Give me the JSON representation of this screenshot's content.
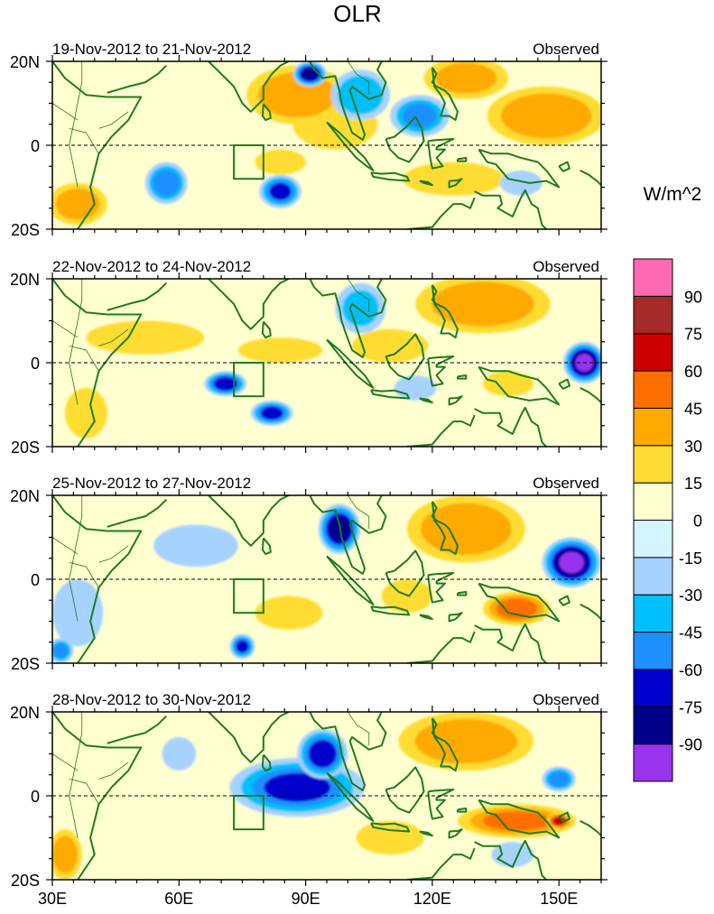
{
  "chart_data": {
    "type": "heatmap",
    "title": "OLR",
    "units": "W/m^2",
    "region_box": {
      "lon": [
        73,
        80
      ],
      "lat": [
        -8,
        0
      ]
    },
    "xaxis": {
      "range": [
        30,
        160
      ],
      "ticks": [
        30,
        60,
        90,
        120,
        150
      ],
      "tick_labels": [
        "30E",
        "60E",
        "90E",
        "120E",
        "150E"
      ]
    },
    "yaxis": {
      "range": [
        -20,
        20
      ],
      "ticks": [
        20,
        0,
        -20
      ],
      "tick_labels": [
        "20N",
        "0",
        "20S"
      ]
    },
    "colorbar": {
      "levels": [
        -90,
        -75,
        -60,
        -45,
        -30,
        -15,
        0,
        15,
        30,
        45,
        60,
        75,
        90
      ],
      "labels": [
        "-90",
        "-75",
        "-60",
        "-45",
        "-30",
        "-15",
        "0",
        "15",
        "30",
        "45",
        "60",
        "75",
        "90"
      ],
      "colors": [
        "#9933ee",
        "#00008b",
        "#0000cd",
        "#1e90ff",
        "#00bfff",
        "#a6d2ff",
        "#d4f5ff",
        "#ffffd0",
        "#ffdc33",
        "#ffaa00",
        "#ff6f00",
        "#cc0000",
        "#a52a2a",
        "#ff69b4"
      ]
    },
    "panels": [
      {
        "date_range": "19-Nov-2012 to 21-Nov-2012",
        "label": "Observed",
        "anomalies": [
          {
            "lon": 88,
            "lat": 12,
            "rlon": 12,
            "rlat": 7,
            "value": 40
          },
          {
            "lon": 97,
            "lat": 5,
            "rlon": 10,
            "rlat": 6,
            "value": 25
          },
          {
            "lon": 84,
            "lat": -4,
            "rlon": 6,
            "rlat": 3,
            "value": 25
          },
          {
            "lon": 147,
            "lat": 7,
            "rlon": 14,
            "rlat": 7,
            "value": 40
          },
          {
            "lon": 128,
            "lat": 16,
            "rlon": 10,
            "rlat": 5,
            "value": 32
          },
          {
            "lon": 125,
            "lat": -8,
            "rlon": 12,
            "rlat": 4,
            "value": 24
          },
          {
            "lon": 36,
            "lat": -14,
            "rlon": 7,
            "rlat": 5,
            "value": 35
          },
          {
            "lon": 57,
            "lat": -9,
            "rlon": 5,
            "rlat": 5,
            "value": -55
          },
          {
            "lon": 84,
            "lat": -11,
            "rlon": 5,
            "rlat": 4,
            "value": -62
          },
          {
            "lon": 91,
            "lat": 17,
            "rlon": 4,
            "rlat": 3,
            "value": -80
          },
          {
            "lon": 103,
            "lat": 12,
            "rlon": 7,
            "rlat": 6,
            "value": -40
          },
          {
            "lon": 117,
            "lat": 7,
            "rlon": 7,
            "rlat": 5,
            "value": -45
          },
          {
            "lon": 141,
            "lat": -9,
            "rlon": 5,
            "rlat": 3,
            "value": -25
          }
        ]
      },
      {
        "date_range": "22-Nov-2012 to 24-Nov-2012",
        "label": "Observed",
        "anomalies": [
          {
            "lon": 132,
            "lat": 14,
            "rlon": 16,
            "rlat": 7,
            "value": 38
          },
          {
            "lon": 84,
            "lat": 3,
            "rlon": 10,
            "rlat": 3,
            "value": 25
          },
          {
            "lon": 52,
            "lat": 6,
            "rlon": 14,
            "rlat": 4,
            "value": 18
          },
          {
            "lon": 110,
            "lat": 4,
            "rlon": 9,
            "rlat": 4,
            "value": 18
          },
          {
            "lon": 38,
            "lat": -12,
            "rlon": 5,
            "rlat": 6,
            "value": 20
          },
          {
            "lon": 71,
            "lat": -5,
            "rlon": 5,
            "rlat": 3,
            "value": -70
          },
          {
            "lon": 82,
            "lat": -12,
            "rlon": 5,
            "rlat": 3,
            "value": -65
          },
          {
            "lon": 156,
            "lat": 0,
            "rlon": 5,
            "rlat": 5,
            "value": -95
          },
          {
            "lon": 103,
            "lat": 13,
            "rlon": 6,
            "rlat": 6,
            "value": -30
          },
          {
            "lon": 116,
            "lat": -6,
            "rlon": 5,
            "rlat": 3,
            "value": -25
          },
          {
            "lon": 138,
            "lat": -5,
            "rlon": 6,
            "rlat": 3,
            "value": 20
          }
        ]
      },
      {
        "date_range": "25-Nov-2012 to 27-Nov-2012",
        "label": "Observed",
        "anomalies": [
          {
            "lon": 128,
            "lat": 12,
            "rlon": 14,
            "rlat": 8,
            "value": 40
          },
          {
            "lon": 140,
            "lat": -7,
            "rlon": 8,
            "rlat": 4,
            "value": 50
          },
          {
            "lon": 86,
            "lat": -8,
            "rlon": 8,
            "rlat": 4,
            "value": 28
          },
          {
            "lon": 114,
            "lat": -4,
            "rlon": 6,
            "rlat": 4,
            "value": 20
          },
          {
            "lon": 98,
            "lat": 12,
            "rlon": 5,
            "rlat": 6,
            "value": -85
          },
          {
            "lon": 153,
            "lat": 4,
            "rlon": 7,
            "rlat": 6,
            "value": -95
          },
          {
            "lon": 75,
            "lat": -16,
            "rlon": 3,
            "rlat": 3,
            "value": -60
          },
          {
            "lon": 64,
            "lat": 8,
            "rlon": 10,
            "rlat": 5,
            "value": -25
          },
          {
            "lon": 36,
            "lat": -8,
            "rlon": 6,
            "rlat": 8,
            "value": -25
          },
          {
            "lon": 32,
            "lat": -17,
            "rlon": 3,
            "rlat": 3,
            "value": -45
          }
        ]
      },
      {
        "date_range": "28-Nov-2012 to 30-Nov-2012",
        "label": "Observed",
        "anomalies": [
          {
            "lon": 88,
            "lat": 2,
            "rlon": 16,
            "rlat": 7,
            "value": -60
          },
          {
            "lon": 94,
            "lat": 10,
            "rlon": 6,
            "rlat": 6,
            "value": -70
          },
          {
            "lon": 128,
            "lat": 13,
            "rlon": 16,
            "rlat": 7,
            "value": 38
          },
          {
            "lon": 140,
            "lat": -6,
            "rlon": 14,
            "rlat": 4,
            "value": 45
          },
          {
            "lon": 150,
            "lat": -6,
            "rlon": 3,
            "rlat": 2,
            "value": 62
          },
          {
            "lon": 150,
            "lat": 4,
            "rlon": 4,
            "rlat": 3,
            "value": -50
          },
          {
            "lon": 33,
            "lat": -14,
            "rlon": 4,
            "rlat": 6,
            "value": 35
          },
          {
            "lon": 60,
            "lat": 10,
            "rlon": 4,
            "rlat": 4,
            "value": -25
          },
          {
            "lon": 110,
            "lat": -10,
            "rlon": 8,
            "rlat": 4,
            "value": 20
          },
          {
            "lon": 139,
            "lat": -14,
            "rlon": 5,
            "rlat": 3,
            "value": -25
          }
        ]
      }
    ]
  }
}
